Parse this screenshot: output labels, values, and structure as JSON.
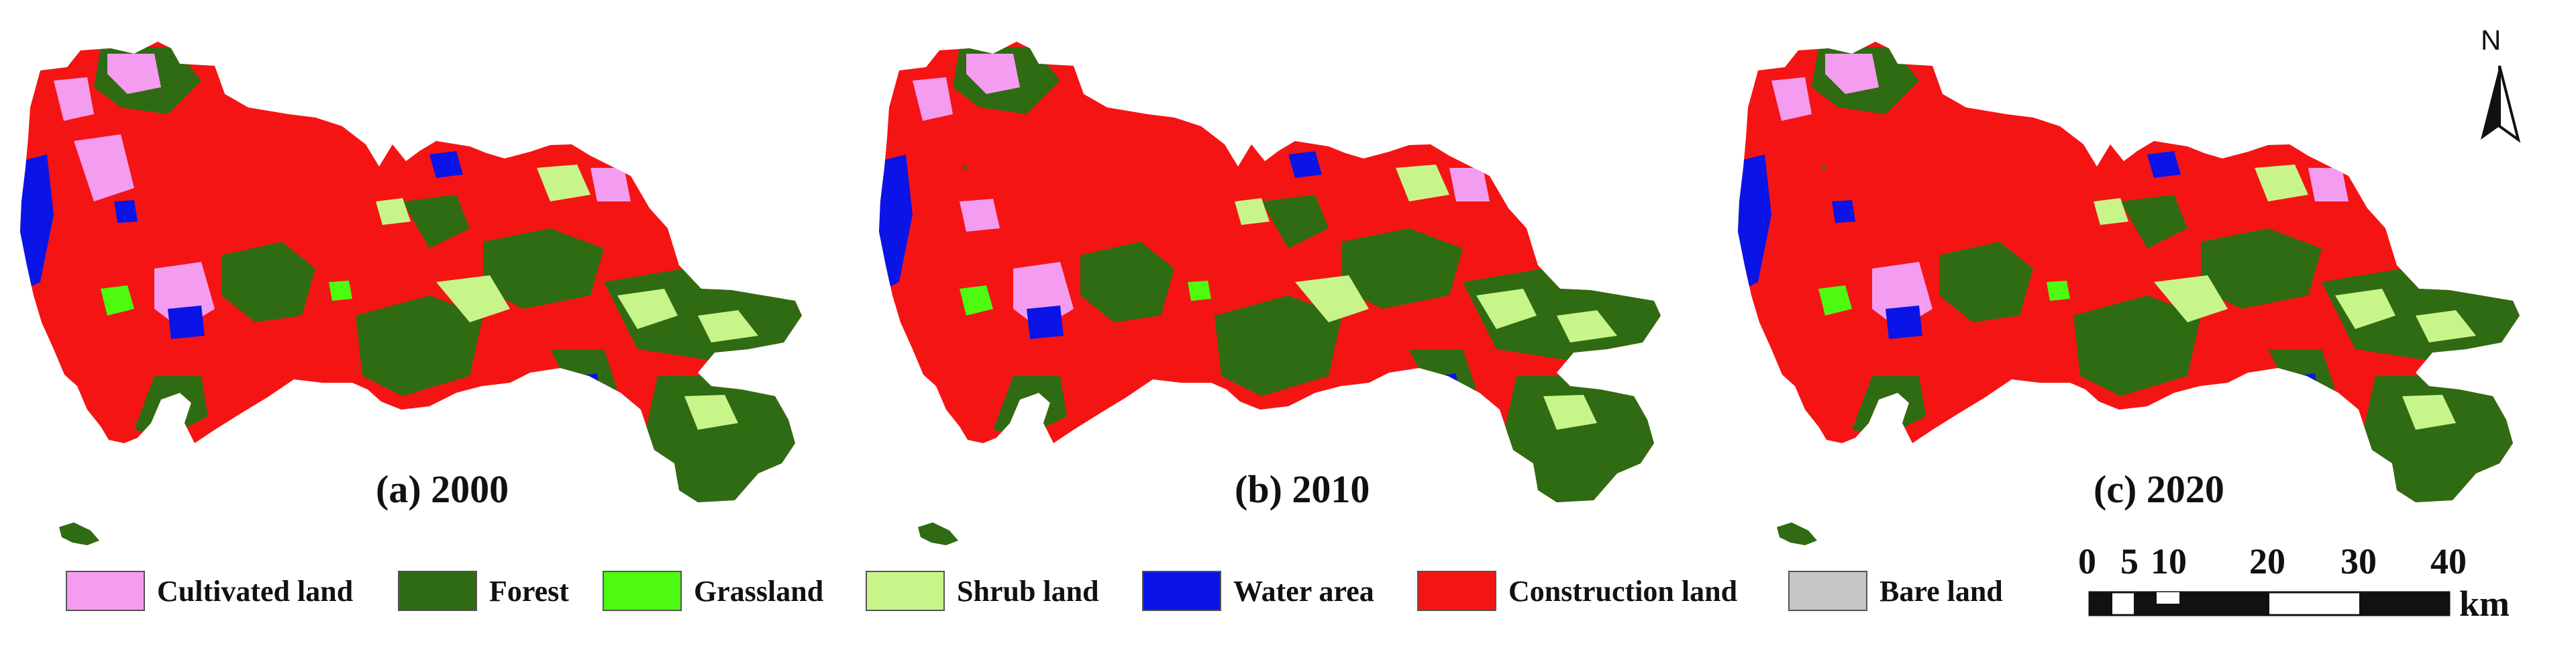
{
  "panels": [
    {
      "label": "(a) 2000"
    },
    {
      "label": "(b) 2010"
    },
    {
      "label": "(c) 2020"
    }
  ],
  "legend": [
    {
      "label": "Cultivated land",
      "color": "#f49cf0"
    },
    {
      "label": "Forest",
      "color": "#2f6b12"
    },
    {
      "label": "Grassland",
      "color": "#4dfa10"
    },
    {
      "label": "Shrub land",
      "color": "#c8f58a"
    },
    {
      "label": "Water area",
      "color": "#0a14e6"
    },
    {
      "label": "Construction land",
      "color": "#f51414"
    },
    {
      "label": "Bare land",
      "color": "#c6c6c6"
    }
  ],
  "north_arrow": {
    "letter": "N"
  },
  "scale_bar": {
    "ticks": [
      "0",
      "5",
      "10",
      "20",
      "30",
      "40"
    ],
    "unit": "km"
  }
}
